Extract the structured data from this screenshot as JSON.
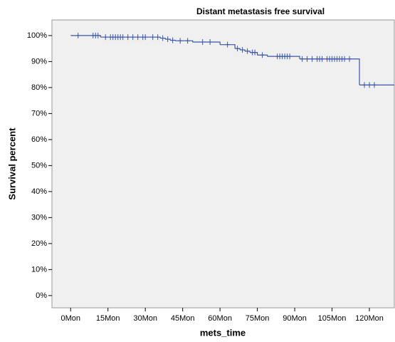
{
  "chart_data": {
    "type": "step",
    "title": "Distant metastasis free survival",
    "x_label": "mets_time",
    "y_label": "Survival percent",
    "color": "#3a55a4",
    "background": "#f0f0f0",
    "x": [
      0,
      12,
      36,
      38,
      40,
      42,
      49,
      60,
      66,
      68,
      70,
      72,
      75,
      79,
      92,
      116
    ],
    "values": [
      100,
      99.4,
      99,
      98.6,
      98.2,
      98,
      97.5,
      96.5,
      95,
      94.5,
      94,
      93.5,
      92.5,
      92,
      91,
      81
    ],
    "censored": {
      "x": [
        3,
        9,
        10,
        11,
        14,
        16,
        17,
        18,
        19,
        20,
        21,
        23,
        25,
        27,
        29,
        30,
        33,
        35,
        37,
        39,
        41,
        44,
        47,
        53,
        56,
        63,
        67,
        69,
        71,
        73,
        74,
        77,
        83,
        84,
        85,
        86,
        87,
        88,
        93,
        95,
        97,
        99,
        100,
        101,
        103,
        104,
        105,
        106,
        107,
        108,
        109,
        110,
        112,
        118,
        120,
        122
      ],
      "y": [
        100,
        100,
        100,
        100,
        99.4,
        99.4,
        99.4,
        99.4,
        99.4,
        99.4,
        99.4,
        99.4,
        99.4,
        99.4,
        99.4,
        99.4,
        99.4,
        99.4,
        99,
        98.6,
        98.2,
        98,
        98,
        97.5,
        97.5,
        96.5,
        95,
        94.5,
        94,
        93.5,
        93.5,
        92.5,
        92,
        92,
        92,
        92,
        92,
        92,
        91,
        91,
        91,
        91,
        91,
        91,
        91,
        91,
        91,
        91,
        91,
        91,
        91,
        91,
        91,
        81,
        81,
        81
      ]
    },
    "xlim": [
      -7.5,
      130
    ],
    "ylim": [
      -4.7,
      106
    ],
    "xticks": [
      {
        "value": 0,
        "label": "0Mon"
      },
      {
        "value": 15,
        "label": "15Mon"
      },
      {
        "value": 30,
        "label": "30Mon"
      },
      {
        "value": 45,
        "label": "45Mon"
      },
      {
        "value": 60,
        "label": "60Mon"
      },
      {
        "value": 75,
        "label": "75Mon"
      },
      {
        "value": 90,
        "label": "90Mon"
      },
      {
        "value": 105,
        "label": "105Mon"
      },
      {
        "value": 120,
        "label": "120Mon"
      }
    ],
    "yticks": [
      {
        "value": 0,
        "label": "0%"
      },
      {
        "value": 10,
        "label": "10%"
      },
      {
        "value": 20,
        "label": "20%"
      },
      {
        "value": 30,
        "label": "30%"
      },
      {
        "value": 40,
        "label": "40%"
      },
      {
        "value": 50,
        "label": "50%"
      },
      {
        "value": 60,
        "label": "60%"
      },
      {
        "value": 70,
        "label": "70%"
      },
      {
        "value": 80,
        "label": "80%"
      },
      {
        "value": 90,
        "label": "90%"
      },
      {
        "value": 100,
        "label": "100%"
      }
    ]
  }
}
